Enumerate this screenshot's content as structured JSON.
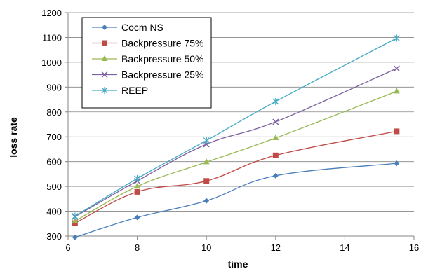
{
  "chart_data": {
    "type": "line",
    "title": "",
    "xlabel": "time",
    "ylabel": "loss rate",
    "xlim": [
      6,
      16
    ],
    "ylim": [
      300,
      1200
    ],
    "xticks": [
      6,
      8,
      10,
      12,
      14,
      16
    ],
    "yticks": [
      300,
      400,
      500,
      600,
      700,
      800,
      900,
      1000,
      1100,
      1200
    ],
    "grid": "horizontal",
    "legend_placement": "top-left",
    "x": [
      6.2,
      8,
      10,
      12,
      15.5
    ],
    "series": [
      {
        "name": "Cocm NS",
        "color": "#4A7EBB",
        "marker": "diamond",
        "values": [
          295,
          375,
          442,
          543,
          593
        ]
      },
      {
        "name": "Backpressure 75%",
        "color": "#BE4B48",
        "marker": "square",
        "values": [
          352,
          478,
          522,
          625,
          722
        ]
      },
      {
        "name": "Backpressure  50%",
        "color": "#98B954",
        "marker": "triangle",
        "values": [
          360,
          500,
          598,
          695,
          883
        ]
      },
      {
        "name": "Backpressure  25%",
        "color": "#7D60A0",
        "marker": "x",
        "values": [
          378,
          522,
          670,
          760,
          975
        ]
      },
      {
        "name": "REEP",
        "color": "#46AAC5",
        "marker": "star",
        "values": [
          380,
          532,
          685,
          842,
          1097
        ]
      }
    ]
  }
}
